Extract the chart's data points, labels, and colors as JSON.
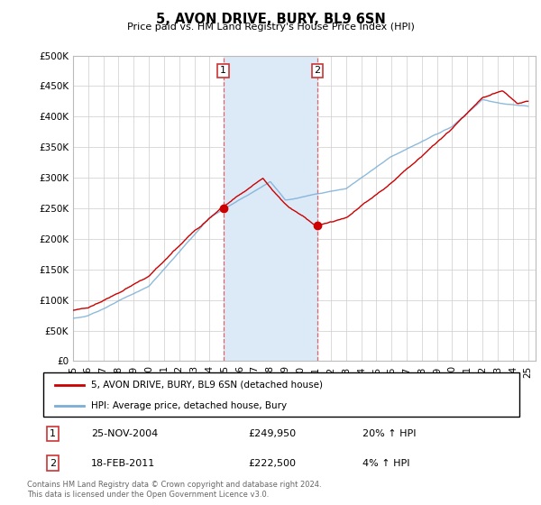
{
  "title": "5, AVON DRIVE, BURY, BL9 6SN",
  "subtitle": "Price paid vs. HM Land Registry's House Price Index (HPI)",
  "ytick_values": [
    0,
    50000,
    100000,
    150000,
    200000,
    250000,
    300000,
    350000,
    400000,
    450000,
    500000
  ],
  "ylim": [
    0,
    500000
  ],
  "xlim_start": 1995.0,
  "xlim_end": 2025.5,
  "sale1_x": 2004.9,
  "sale1_y": 249950,
  "sale2_x": 2011.12,
  "sale2_y": 222500,
  "shade_color": "#dce9f7",
  "line_red_color": "#cc0000",
  "line_blue_color": "#7aaed6",
  "dashed_line_color": "#dd4444",
  "marker_color_red": "#cc0000",
  "grid_color": "#cccccc",
  "bg_color": "#ffffff",
  "legend_line1": "5, AVON DRIVE, BURY, BL9 6SN (detached house)",
  "legend_line2": "HPI: Average price, detached house, Bury",
  "table_row1": [
    "1",
    "25-NOV-2004",
    "£249,950",
    "20% ↑ HPI"
  ],
  "table_row2": [
    "2",
    "18-FEB-2011",
    "£222,500",
    "4% ↑ HPI"
  ],
  "footnote": "Contains HM Land Registry data © Crown copyright and database right 2024.\nThis data is licensed under the Open Government Licence v3.0."
}
